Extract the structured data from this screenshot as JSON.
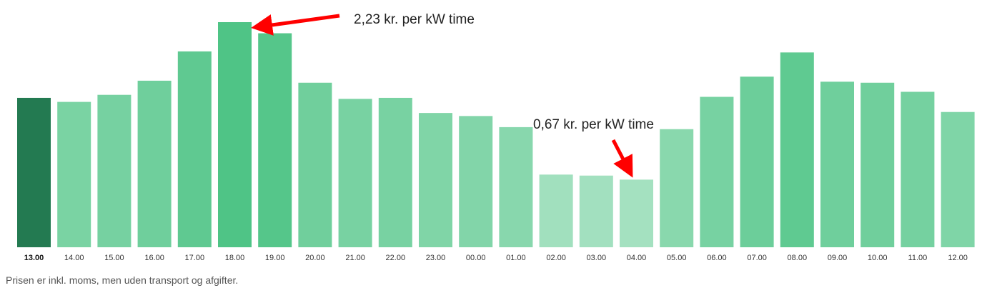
{
  "chart_data": {
    "type": "bar",
    "categories": [
      "13.00",
      "14.00",
      "15.00",
      "16.00",
      "17.00",
      "18.00",
      "19.00",
      "20.00",
      "21.00",
      "22.00",
      "23.00",
      "00.00",
      "01.00",
      "02.00",
      "03.00",
      "04.00",
      "05.00",
      "06.00",
      "07.00",
      "08.00",
      "09.00",
      "10.00",
      "11.00",
      "12.00"
    ],
    "values": [
      1.48,
      1.44,
      1.51,
      1.65,
      1.94,
      2.23,
      2.12,
      1.63,
      1.47,
      1.48,
      1.33,
      1.3,
      1.19,
      0.72,
      0.71,
      0.67,
      1.17,
      1.49,
      1.69,
      1.93,
      1.64,
      1.63,
      1.54,
      1.34
    ],
    "highlight_index": 0,
    "ylim": [
      0,
      2.23
    ],
    "grid": false,
    "colors": {
      "current": "#237a51",
      "low": "#a4e1c0",
      "high": "#4fc486"
    },
    "annotations": [
      {
        "text": "2,23 kr. per kW time",
        "category_index": 5,
        "arrow_color": "#ff0000"
      },
      {
        "text": "0,67 kr. per kW time",
        "category_index": 15,
        "arrow_color": "#ff0000"
      }
    ]
  },
  "footnote": "Prisen er inkl. moms, men uden transport og afgifter."
}
